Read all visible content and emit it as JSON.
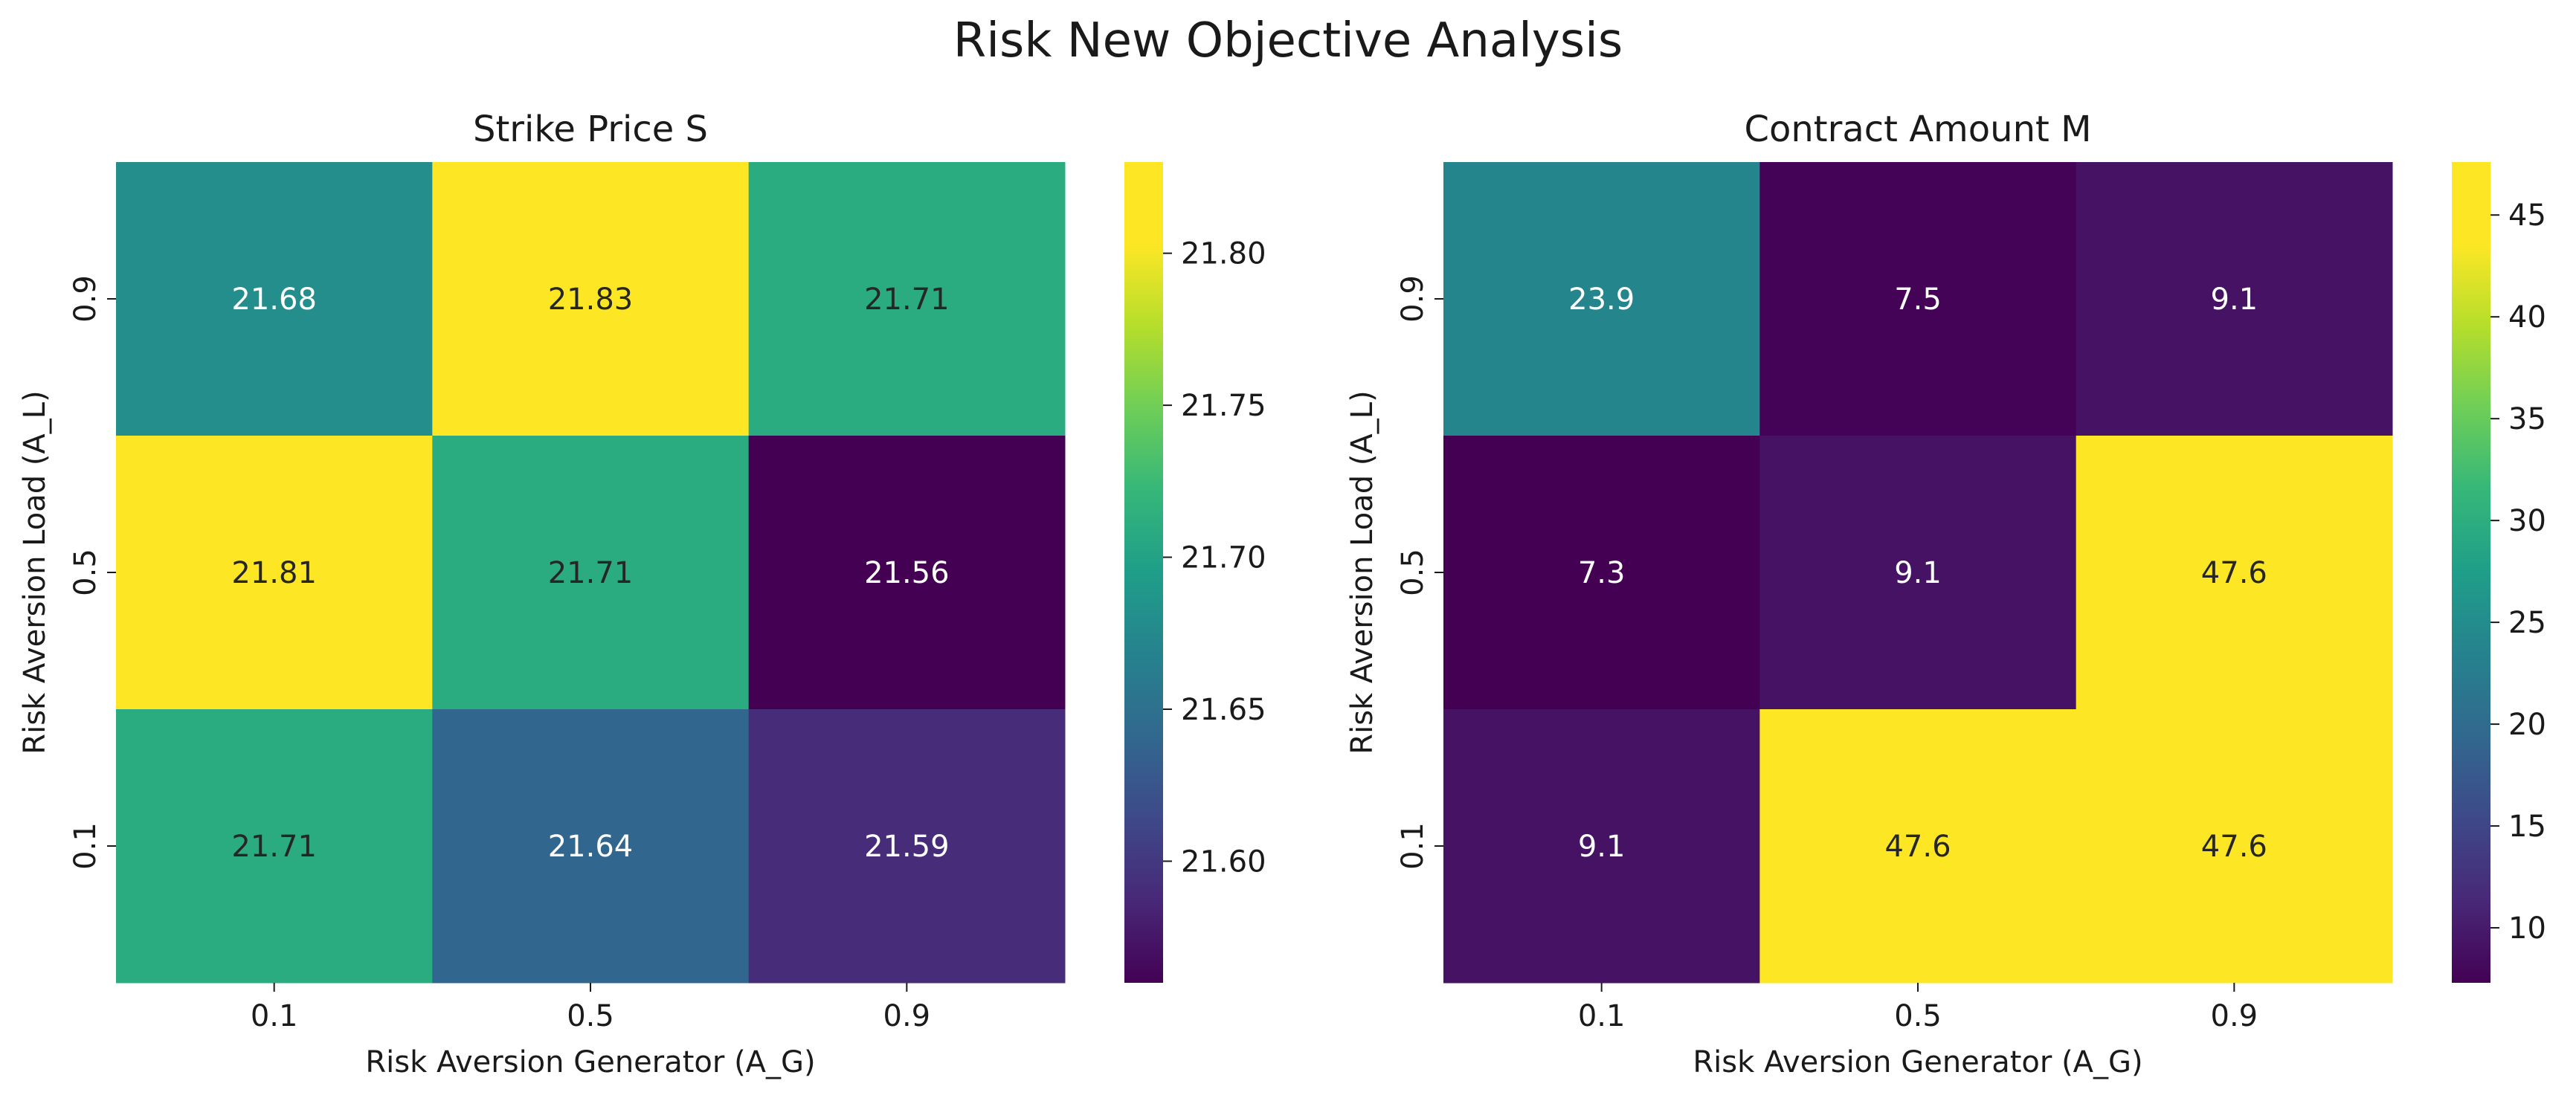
{
  "figure_title": "Risk New Objective Analysis",
  "chart_data": [
    {
      "type": "heatmap",
      "title": "Strike Price S",
      "xlabel": "Risk Aversion Generator (A_G)",
      "ylabel": "Risk Aversion Load (A_L)",
      "x_categories": [
        "0.1",
        "0.5",
        "0.9"
      ],
      "y_categories": [
        "0.9",
        "0.5",
        "0.1"
      ],
      "values": [
        [
          21.68,
          21.83,
          21.71
        ],
        [
          21.81,
          21.71,
          21.56
        ],
        [
          21.71,
          21.64,
          21.59
        ]
      ],
      "labels": [
        [
          "21.68",
          "21.83",
          "21.71"
        ],
        [
          "21.81",
          "21.71",
          "21.56"
        ],
        [
          "21.71",
          "21.64",
          "21.59"
        ]
      ],
      "colormap": "viridis",
      "vmin": 21.56,
      "vmax": 21.83,
      "colorbar_ticks": [
        21.6,
        21.65,
        21.7,
        21.75,
        21.8
      ],
      "colorbar_tick_labels": [
        "21.60",
        "21.65",
        "21.70",
        "21.75",
        "21.80"
      ]
    },
    {
      "type": "heatmap",
      "title": "Contract Amount M",
      "xlabel": "Risk Aversion Generator (A_G)",
      "ylabel": "Risk Aversion Load (A_L)",
      "x_categories": [
        "0.1",
        "0.5",
        "0.9"
      ],
      "y_categories": [
        "0.9",
        "0.5",
        "0.1"
      ],
      "values": [
        [
          23.9,
          7.5,
          9.1
        ],
        [
          7.3,
          9.1,
          47.6
        ],
        [
          9.1,
          47.6,
          47.6
        ]
      ],
      "labels": [
        [
          "23.9",
          "7.5",
          "9.1"
        ],
        [
          "7.3",
          "9.1",
          "47.6"
        ],
        [
          "9.1",
          "47.6",
          "47.6"
        ]
      ],
      "colormap": "viridis",
      "vmin": 7.3,
      "vmax": 47.6,
      "colorbar_ticks": [
        10,
        15,
        20,
        25,
        30,
        35,
        40,
        45
      ],
      "colorbar_tick_labels": [
        "10",
        "15",
        "20",
        "25",
        "30",
        "35",
        "40",
        "45"
      ]
    }
  ]
}
